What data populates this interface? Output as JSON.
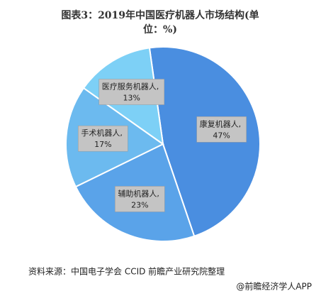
{
  "chart_data": {
    "type": "pie",
    "title": "图表3：2019年中国医疗机器人市场结构(单位：%)",
    "values": [
      47,
      23,
      17,
      13
    ],
    "value_labels": [
      "康复机器人, 47%",
      "辅助机器人, 23%",
      "手术机器人, 17%",
      "医疗服务机器人, 13%"
    ],
    "colors": [
      "#4a8ee0",
      "#5aa3e9",
      "#6cbaef",
      "#7dd0f6"
    ],
    "source": "资料来源：中国电子学会 CCID 前瞻产业研究院整理",
    "footer": "@前瞻经济学人APP"
  }
}
